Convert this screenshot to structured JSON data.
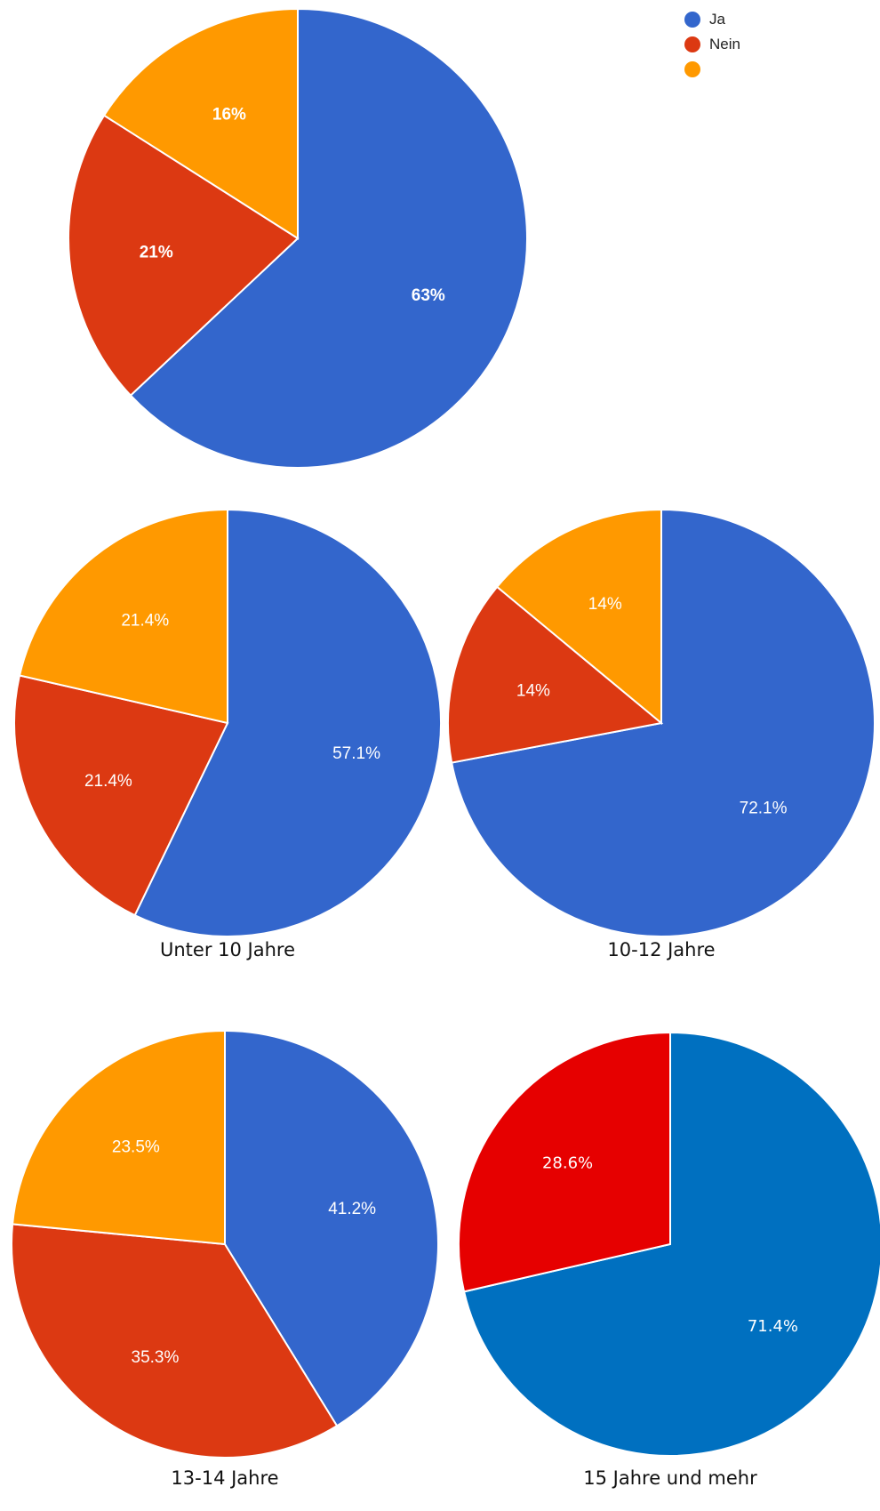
{
  "legend": [
    {
      "label": "Ja",
      "color": "#3366cc"
    },
    {
      "label": "Nein",
      "color": "#dc3912"
    },
    {
      "label": "",
      "color": "#ff9900"
    }
  ],
  "chart_data": [
    {
      "type": "pie",
      "title": "",
      "categories": [
        "Ja",
        "Nein",
        ""
      ],
      "values": [
        63,
        21,
        16
      ],
      "labels": [
        "63%",
        "21%",
        "16%"
      ],
      "colors": [
        "#3366cc",
        "#dc3912",
        "#ff9900"
      ],
      "legend": "top-right"
    },
    {
      "type": "pie",
      "title": "Unter 10 Jahre",
      "categories": [
        "Ja",
        "Nein",
        ""
      ],
      "values": [
        57.1,
        21.4,
        21.4
      ],
      "labels": [
        "57.1%",
        "21.4%",
        "21.4%"
      ],
      "colors": [
        "#3366cc",
        "#dc3912",
        "#ff9900"
      ]
    },
    {
      "type": "pie",
      "title": "10-12 Jahre",
      "categories": [
        "Ja",
        "Nein",
        ""
      ],
      "values": [
        72.1,
        14,
        14
      ],
      "labels": [
        "72.1%",
        "14%",
        "14%"
      ],
      "colors": [
        "#3366cc",
        "#dc3912",
        "#ff9900"
      ]
    },
    {
      "type": "pie",
      "title": "13-14 Jahre",
      "categories": [
        "Ja",
        "Nein",
        ""
      ],
      "values": [
        41.2,
        35.3,
        23.5
      ],
      "labels": [
        "41.2%",
        "35.3%",
        "23.5%"
      ],
      "colors": [
        "#3366cc",
        "#dc3912",
        "#ff9900"
      ]
    },
    {
      "type": "pie",
      "title": "15 Jahre und mehr",
      "categories": [
        "Ja",
        "Nein"
      ],
      "values": [
        71.4,
        28.6
      ],
      "labels": [
        "71.4%",
        "28.6%"
      ],
      "colors": [
        "#0070c0",
        "#e60000"
      ]
    }
  ]
}
